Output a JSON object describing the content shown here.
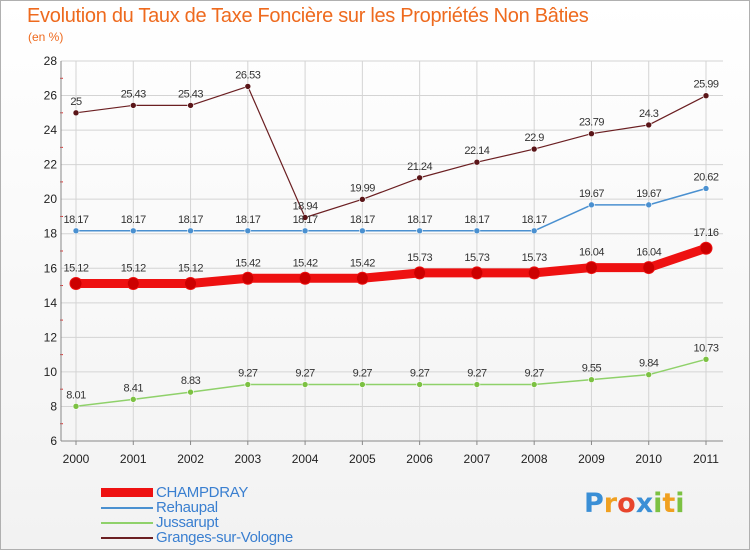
{
  "title": "Evolution du Taux de Taxe Foncière sur les Propriétés Non Bâties",
  "unit_label": "(en %)",
  "logo": {
    "text": "Proxiti",
    "letters": [
      {
        "char": "P",
        "color": "#3a8fd6"
      },
      {
        "char": "r",
        "color": "#f0a020"
      },
      {
        "char": "o",
        "color": "#e8452c"
      },
      {
        "char": "x",
        "color": "#3a8fd6"
      },
      {
        "char": "i",
        "color": "#7cc142"
      },
      {
        "char": "t",
        "color": "#f0a020"
      },
      {
        "char": "i",
        "color": "#7cc142"
      }
    ]
  },
  "chart_data": {
    "type": "line",
    "title": "Evolution du Taux de Taxe Foncière sur les Propriétés Non Bâties",
    "ylabel": "(en %)",
    "xlabel": "",
    "x": [
      "2000",
      "2001",
      "2002",
      "2003",
      "2004",
      "2005",
      "2006",
      "2007",
      "2008",
      "2009",
      "2010",
      "2011"
    ],
    "ylim": [
      6,
      28
    ],
    "yticks": [
      6,
      8,
      10,
      12,
      14,
      16,
      18,
      20,
      22,
      24,
      26,
      28
    ],
    "grid": true,
    "legend_position": "bottom-left",
    "series": [
      {
        "name": "CHAMPDRAY",
        "color": "#ee1111",
        "values": [
          15.12,
          15.12,
          15.12,
          15.42,
          15.42,
          15.42,
          15.73,
          15.73,
          15.73,
          16.04,
          16.04,
          17.16
        ],
        "labels": [
          "15.12",
          "15.12",
          "15.12",
          "15.42",
          "15.42",
          "15.42",
          "15.73",
          "15.73",
          "15.73",
          "16.04",
          "16.04",
          "17.16"
        ]
      },
      {
        "name": "Rehaupal",
        "color": "#4a90d0",
        "values": [
          18.17,
          18.17,
          18.17,
          18.17,
          18.17,
          18.17,
          18.17,
          18.17,
          18.17,
          19.67,
          19.67,
          20.62
        ],
        "labels": [
          "18.17",
          "18.17",
          "18.17",
          "18.17",
          "18.17",
          "18.17",
          "18.17",
          "18.17",
          "18.17",
          "19.67",
          "19.67",
          "20.62"
        ]
      },
      {
        "name": "Jussarupt",
        "color": "#8fd16a",
        "values": [
          8.01,
          8.41,
          8.83,
          9.27,
          9.27,
          9.27,
          9.27,
          9.27,
          9.27,
          9.55,
          9.84,
          10.73
        ],
        "labels": [
          "8.01",
          "8.41",
          "8.83",
          "9.27",
          "9.27",
          "9.27",
          "9.27",
          "9.27",
          "9.27",
          "9.55",
          "9.84",
          "10.73"
        ]
      },
      {
        "name": "Granges-sur-Vologne",
        "color": "#6b1f22",
        "values": [
          25,
          25.43,
          25.43,
          26.53,
          18.94,
          19.99,
          21.24,
          22.14,
          22.9,
          23.79,
          24.3,
          25.99
        ],
        "labels": [
          "25",
          "25.43",
          "25.43",
          "26.53",
          "18.94",
          "19.99",
          "21.24",
          "22.14",
          "22.9",
          "23.79",
          "24.3",
          "25.99"
        ]
      }
    ]
  }
}
